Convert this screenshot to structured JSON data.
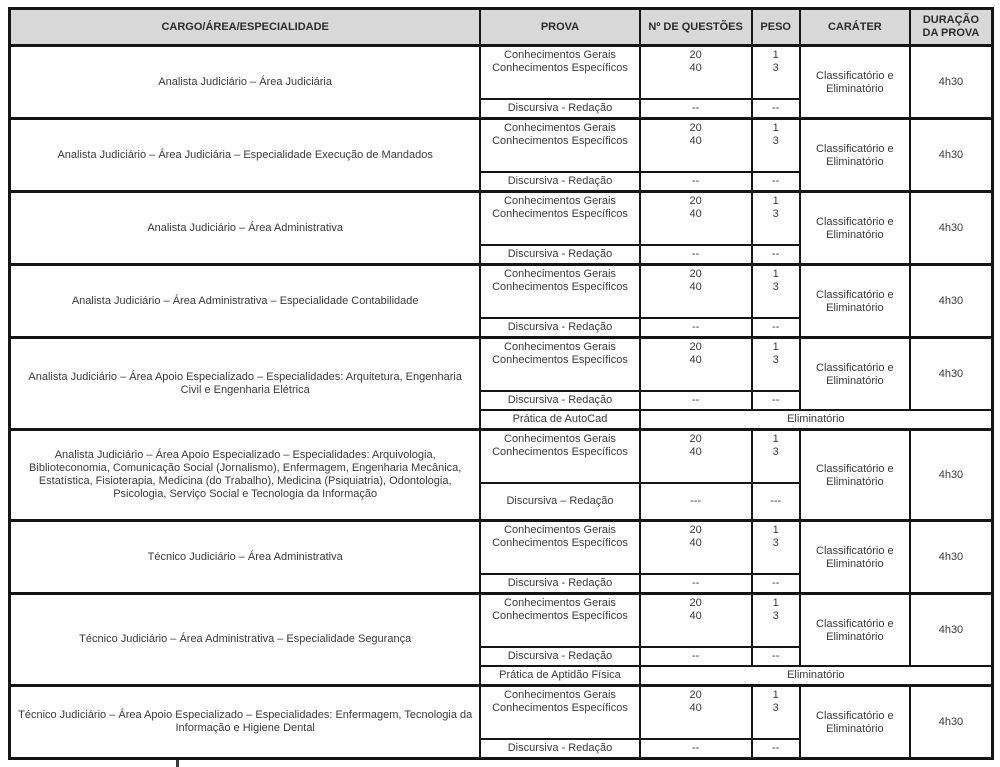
{
  "styles": {
    "header_bg": "#d8d8d8",
    "border_color": "#151515",
    "text_color": "#3a3a3a"
  },
  "table": {
    "columns": [
      {
        "key": "cargo",
        "label": "CARGO/ÁREA/ESPECIALIDADE"
      },
      {
        "key": "prova",
        "label": "PROVA"
      },
      {
        "key": "questoes",
        "label": "Nº DE QUESTÕES"
      },
      {
        "key": "peso",
        "label": "PESO"
      },
      {
        "key": "carater",
        "label": "CARÁTER"
      },
      {
        "key": "duracao",
        "label": "DURAÇÃO DA PROVA"
      }
    ],
    "blocks": [
      {
        "cargo": "Analista Judiciário – Área Judiciária",
        "objective": {
          "provas": [
            "Conhecimentos Gerais",
            "Conhecimentos Específicos"
          ],
          "questoes": [
            "20",
            "40"
          ],
          "pesos": [
            "1",
            "3"
          ],
          "carater": "Classificatório e Eliminatório",
          "duracao": "4h30"
        },
        "discursiva": {
          "label": "Discursiva - Redação",
          "questoes": "--",
          "peso": "--",
          "tall": false
        }
      },
      {
        "cargo": "Analista Judiciário – Área Judiciária – Especialidade Execução de Mandados",
        "objective": {
          "provas": [
            "Conhecimentos Gerais",
            "Conhecimentos Específicos"
          ],
          "questoes": [
            "20",
            "40"
          ],
          "pesos": [
            "1",
            "3"
          ],
          "carater": "Classificatório e Eliminatório",
          "duracao": "4h30"
        },
        "discursiva": {
          "label": "Discursiva - Redação",
          "questoes": "--",
          "peso": "--",
          "tall": false
        }
      },
      {
        "cargo": "Analista Judiciário – Área Administrativa",
        "objective": {
          "provas": [
            "Conhecimentos Gerais",
            "Conhecimentos Específicos"
          ],
          "questoes": [
            "20",
            "40"
          ],
          "pesos": [
            "1",
            "3"
          ],
          "carater": "Classificatório e Eliminatório",
          "duracao": "4h30"
        },
        "discursiva": {
          "label": "Discursiva - Redação",
          "questoes": "--",
          "peso": "--",
          "tall": false
        }
      },
      {
        "cargo": "Analista Judiciário – Área Administrativa – Especialidade Contabilidade",
        "objective": {
          "provas": [
            "Conhecimentos Gerais",
            "Conhecimentos Específicos"
          ],
          "questoes": [
            "20",
            "40"
          ],
          "pesos": [
            "1",
            "3"
          ],
          "carater": "Classificatório e Eliminatório",
          "duracao": "4h30"
        },
        "discursiva": {
          "label": "Discursiva - Redação",
          "questoes": "--",
          "peso": "--",
          "tall": false
        }
      },
      {
        "cargo": "Analista Judiciário – Área Apoio Especializado – Especialidades: Arquitetura, Engenharia Civil e Engenharia Elétrica",
        "objective": {
          "provas": [
            "Conhecimentos Gerais",
            "Conhecimentos Específicos"
          ],
          "questoes": [
            "20",
            "40"
          ],
          "pesos": [
            "1",
            "3"
          ],
          "carater": "Classificatório e Eliminatório",
          "duracao": "4h30"
        },
        "discursiva": {
          "label": "Discursiva - Redação",
          "questoes": "--",
          "peso": "--",
          "tall": false
        },
        "extra": {
          "label": "Prática de AutoCad",
          "value": "Eliminatório"
        }
      },
      {
        "cargo": "Analista Judiciário – Área Apoio Especializado – Especialidades: Arquivologia, Biblioteconomia, Comunicação Social (Jornalismo), Enfermagem, Engenharia Mecânica, Estatística, Fisioterapia, Medicina (do Trabalho), Medicina (Psiquiatria), Odontologia, Psicologia, Serviço Social e Tecnologia da Informação",
        "objective": {
          "provas": [
            "Conhecimentos Gerais",
            "Conhecimentos Específicos"
          ],
          "questoes": [
            "20",
            "40"
          ],
          "pesos": [
            "1",
            "3"
          ],
          "carater": "Classificatório e Eliminatório",
          "duracao": "4h30"
        },
        "discursiva": {
          "label": "Discursiva – Redação",
          "questoes": "---",
          "peso": "---",
          "tall": true
        }
      },
      {
        "cargo": "Técnico Judiciário – Área Administrativa",
        "objective": {
          "provas": [
            "Conhecimentos Gerais",
            "Conhecimentos Específicos"
          ],
          "questoes": [
            "20",
            "40"
          ],
          "pesos": [
            "1",
            "3"
          ],
          "carater": "Classificatório e Eliminatório",
          "duracao": "4h30"
        },
        "discursiva": {
          "label": "Discursiva - Redação",
          "questoes": "--",
          "peso": "--",
          "tall": false
        }
      },
      {
        "cargo": "Técnico Judiciário – Área Administrativa – Especialidade Segurança",
        "objective": {
          "provas": [
            "Conhecimentos Gerais",
            "Conhecimentos Específicos"
          ],
          "questoes": [
            "20",
            "40"
          ],
          "pesos": [
            "1",
            "3"
          ],
          "carater": "Classificatório e Eliminatório",
          "duracao": "4h30"
        },
        "discursiva": {
          "label": "Discursiva - Redação",
          "questoes": "--",
          "peso": "--",
          "tall": false
        },
        "extra": {
          "label": "Prática de Aptidão Física",
          "value": "Eliminatório"
        }
      },
      {
        "cargo": "Técnico Judiciário – Área Apoio Especializado – Especialidades: Enfermagem, Tecnologia da Informação e Higiene Dental",
        "objective": {
          "provas": [
            "Conhecimentos Gerais",
            "Conhecimentos Específicos"
          ],
          "questoes": [
            "20",
            "40"
          ],
          "pesos": [
            "1",
            "3"
          ],
          "carater": "Classificatório e Eliminatório",
          "duracao": "4h30"
        },
        "discursiva": {
          "label": "Discursiva - Redação",
          "questoes": "--",
          "peso": "--",
          "tall": false
        }
      }
    ]
  }
}
